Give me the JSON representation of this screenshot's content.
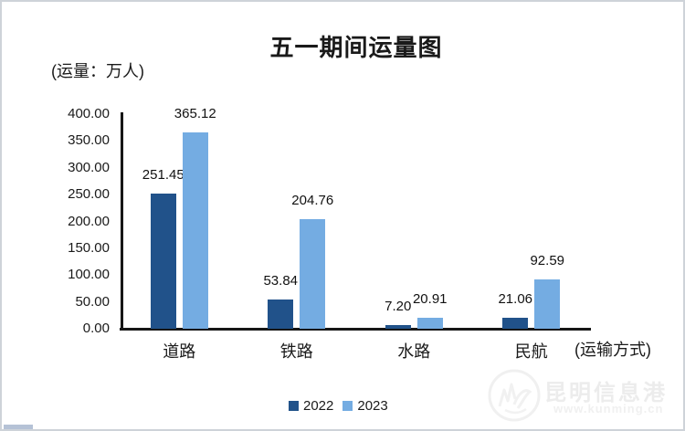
{
  "title": "五一期间运量图",
  "y_axis_unit_label": "(运量：万人)",
  "x_axis_title": "(运输方式)",
  "chart_data": {
    "type": "bar",
    "title": "五一期间运量图",
    "ylabel": "(运量：万人)",
    "xlabel": "(运输方式)",
    "categories": [
      "道路",
      "铁路",
      "水路",
      "民航"
    ],
    "series": [
      {
        "name": "2022",
        "color": "#21528A",
        "values": [
          251.45,
          53.84,
          7.2,
          21.06
        ]
      },
      {
        "name": "2023",
        "color": "#74ACE2",
        "values": [
          365.12,
          204.76,
          20.91,
          92.59
        ]
      }
    ],
    "ylim": [
      0,
      400
    ],
    "ytick_labels": [
      "400.00",
      "350.00",
      "300.00",
      "250.00",
      "200.00",
      "150.00",
      "100.00",
      "50.00",
      "0.00"
    ],
    "grid": false,
    "legend_position": "bottom-center",
    "data_labels_visible": true,
    "axis_color": "#161616"
  },
  "legend": {
    "items": [
      {
        "label": "2022",
        "color": "#21528A"
      },
      {
        "label": "2023",
        "color": "#74ACE2"
      }
    ]
  },
  "watermark": {
    "name": "昆明信息港",
    "url": "www.kunming.cn",
    "color": "#ececec"
  }
}
